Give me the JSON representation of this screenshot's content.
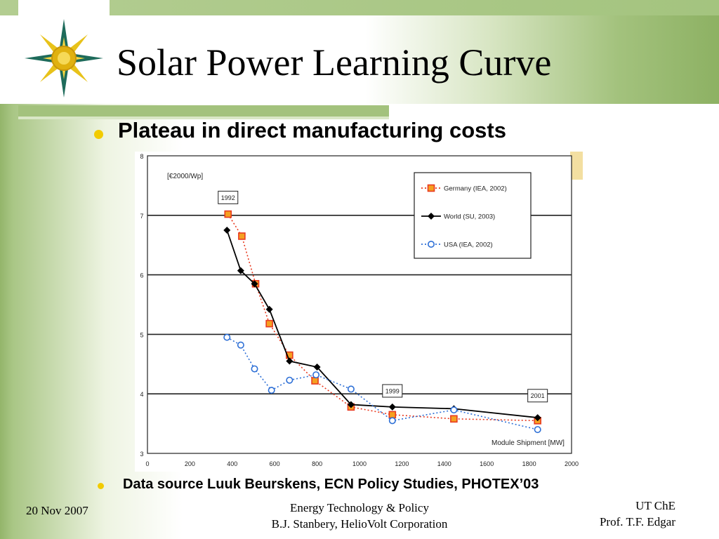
{
  "slide": {
    "title": "Solar Power Learning Curve",
    "bullets": [
      "Plateau in direct manufacturing costs",
      "Data source Luuk Beurskens, ECN Policy Studies, PHOTEX’03"
    ],
    "footer": {
      "date": "20 Nov 2007",
      "center_line1": "Energy Technology & Policy",
      "center_line2": "B.J. Stanbery, HelioVolt Corporation",
      "right_line1": "UT ChE",
      "right_line2": "Prof. T.F. Edgar"
    },
    "colors": {
      "accent_green": "#a3c27d",
      "bullet_yellow": "#f2cb00"
    },
    "logo_icon": "compass-star-icon"
  },
  "chart_data": {
    "type": "line",
    "ylabel": "[€2000/Wp]",
    "xlabel": "Module Shipment [MW]",
    "xlim": [
      0,
      2000
    ],
    "ylim": [
      3,
      8
    ],
    "x_ticks": [
      "0",
      "200",
      "400",
      "600",
      "800",
      "1000",
      "1200",
      "1400",
      "1600",
      "1800",
      "2000"
    ],
    "y_ticks": [
      "3",
      "4",
      "5",
      "6",
      "7",
      "8"
    ],
    "grid": "horizontal",
    "legend_position": "top-right",
    "annotations": [
      {
        "text": "1992",
        "x": 380,
        "y": 7.3
      },
      {
        "text": "1999",
        "x": 1155,
        "y": 4.05
      },
      {
        "text": "2001",
        "x": 1840,
        "y": 3.97
      }
    ],
    "series": [
      {
        "name": "Germany (IEA, 2002)",
        "color": "#e83a20",
        "marker": "square",
        "dash": "dotted",
        "x": [
          380,
          445,
          510,
          575,
          670,
          790,
          960,
          1155,
          1445,
          1840
        ],
        "y": [
          7.02,
          6.65,
          5.85,
          5.18,
          4.65,
          4.22,
          3.78,
          3.65,
          3.58,
          3.55
        ]
      },
      {
        "name": "World (SU, 2003)",
        "color": "#000000",
        "marker": "diamond",
        "dash": "solid",
        "x": [
          375,
          440,
          505,
          575,
          670,
          800,
          960,
          1155,
          1445,
          1840
        ],
        "y": [
          6.75,
          6.07,
          5.85,
          5.42,
          4.55,
          4.45,
          3.82,
          3.78,
          3.75,
          3.6
        ]
      },
      {
        "name": "USA (IEA, 2002)",
        "color": "#2d6fd6",
        "marker": "circle",
        "dash": "dotted",
        "x": [
          375,
          440,
          505,
          585,
          670,
          795,
          960,
          1155,
          1445,
          1840
        ],
        "y": [
          4.95,
          4.82,
          4.42,
          4.06,
          4.23,
          4.32,
          4.08,
          3.55,
          3.73,
          3.4
        ]
      }
    ]
  }
}
